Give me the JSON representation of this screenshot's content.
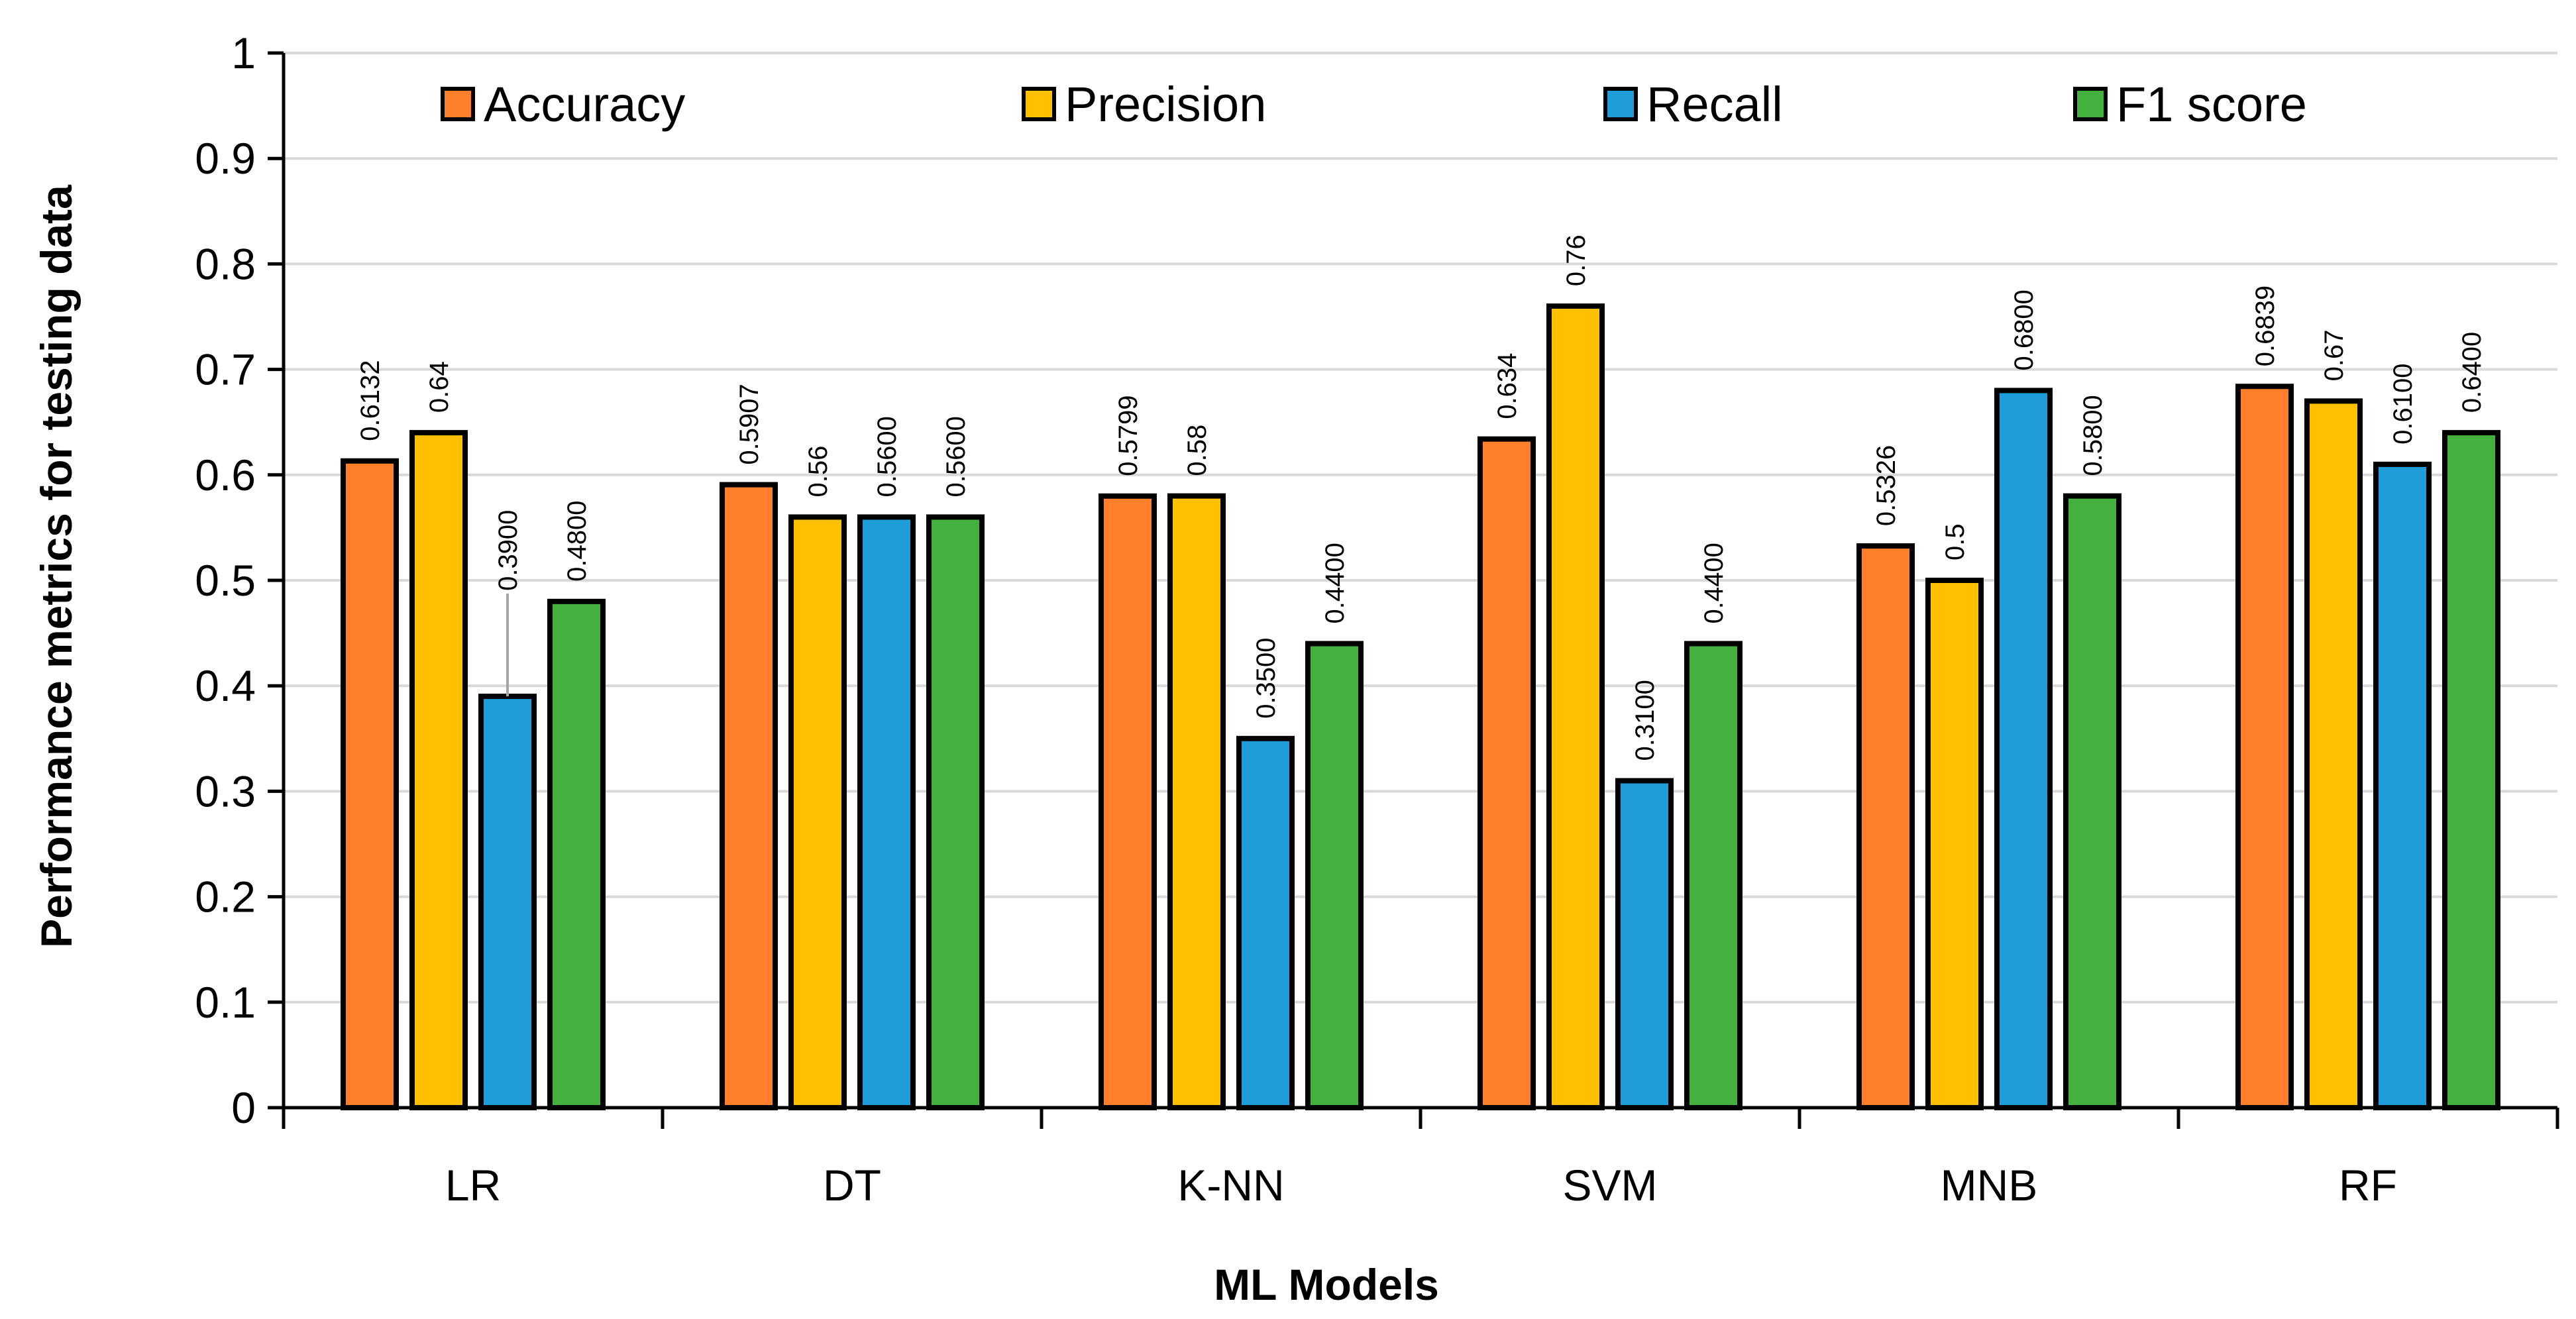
{
  "chart_data": {
    "type": "bar",
    "title": "",
    "xlabel": "ML Models",
    "ylabel": "Performance metrics for testing data",
    "ylim": [
      0,
      1
    ],
    "yticks": [
      0,
      0.1,
      0.2,
      0.3,
      0.4,
      0.5,
      0.6,
      0.7,
      0.8,
      0.9,
      1
    ],
    "ytick_labels": [
      "0",
      "0.1",
      "0.2",
      "0.3",
      "0.4",
      "0.5",
      "0.6",
      "0.7",
      "0.8",
      "0.9",
      "1"
    ],
    "grid": true,
    "legend_position": "top",
    "categories": [
      "LR",
      "DT",
      "K-NN",
      "SVM",
      "MNB",
      "RF"
    ],
    "series": [
      {
        "name": "Accuracy",
        "color": "#FF7F2A",
        "values": [
          0.6132,
          0.5907,
          0.5799,
          0.634,
          0.5326,
          0.6839
        ],
        "labels": [
          "0.6132",
          "0.5907",
          "0.5799",
          "0.634",
          "0.5326",
          "0.6839"
        ]
      },
      {
        "name": "Precision",
        "color": "#FFC000",
        "values": [
          0.64,
          0.56,
          0.58,
          0.76,
          0.5,
          0.67
        ],
        "labels": [
          "0.64",
          "0.56",
          "0.58",
          "0.76",
          "0.5",
          "0.67"
        ]
      },
      {
        "name": "Recall",
        "color": "#1F9DD9",
        "values": [
          0.39,
          0.56,
          0.35,
          0.31,
          0.68,
          0.61
        ],
        "labels": [
          "0.3900",
          "0.5600",
          "0.3500",
          "0.3100",
          "0.6800",
          "0.6100"
        ]
      },
      {
        "name": "F1 score",
        "color": "#44B03E",
        "values": [
          0.48,
          0.56,
          0.44,
          0.44,
          0.58,
          0.64
        ],
        "labels": [
          "0.4800",
          "0.5600",
          "0.4400",
          "0.4400",
          "0.5800",
          "0.6400"
        ]
      }
    ]
  }
}
